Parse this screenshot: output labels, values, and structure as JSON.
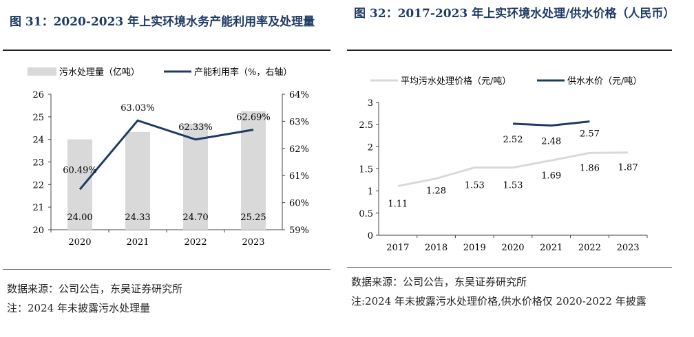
{
  "left": {
    "title": "图 31：2020-2023 年上实环境水务产能利用率及处理量",
    "source": "数据来源：公司公告，东吴证券研究所",
    "note": "注：2024 年未披露污水处理量",
    "colors": {
      "bar": "#d9d9d9",
      "line": "#1f3b63"
    }
  },
  "right": {
    "title": "图 32：2017-2023 年上实环境水处理/供水价格（人民币）",
    "source": "数据来源：公司公告，东吴证券研究所",
    "note": "注:2024 年未披露污水处理价格,供水价格仅 2020-2022 年披露",
    "colors": {
      "sewage": "#d9d9d9",
      "supply": "#1f3b63"
    }
  },
  "chart_data": [
    {
      "type": "bar",
      "categories": [
        "2020",
        "2021",
        "2022",
        "2023"
      ],
      "series": [
        {
          "name": "污水处理量（亿吨）",
          "type": "bar",
          "axis": "left",
          "values": [
            24.0,
            24.33,
            24.7,
            25.25
          ],
          "labels": [
            "24.00",
            "24.33",
            "24.70",
            "25.25"
          ]
        },
        {
          "name": "产能利用率（%，右轴）",
          "type": "line",
          "axis": "right",
          "values": [
            60.49,
            63.03,
            62.33,
            62.69
          ],
          "labels": [
            "60.49%",
            "63.03%",
            "62.33%",
            "62.69%"
          ]
        }
      ],
      "ylim": [
        20,
        26
      ],
      "yticks": [
        "20",
        "21",
        "22",
        "23",
        "24",
        "25",
        "26"
      ],
      "y2lim": [
        59,
        64
      ],
      "y2ticks": [
        "59%",
        "60%",
        "61%",
        "62%",
        "63%",
        "64%"
      ],
      "legend": "top",
      "grid": false
    },
    {
      "type": "line",
      "categories": [
        "2017",
        "2018",
        "2019",
        "2020",
        "2021",
        "2022",
        "2023"
      ],
      "series": [
        {
          "name": "平均污水处理价格（元/吨）",
          "values": [
            1.11,
            1.28,
            1.53,
            1.53,
            1.69,
            1.86,
            1.87
          ],
          "labels": [
            "1.11",
            "1.28",
            "1.53",
            "1.53",
            "1.69",
            "1.86",
            "1.87"
          ]
        },
        {
          "name": "供水水价（元/吨）",
          "values": [
            null,
            null,
            null,
            2.52,
            2.48,
            2.57,
            null
          ],
          "labels": [
            "",
            "",
            "",
            "2.52",
            "2.48",
            "2.57",
            ""
          ]
        }
      ],
      "ylim": [
        0,
        3
      ],
      "yticks": [
        "0",
        "0.5",
        "1",
        "1.5",
        "2",
        "2.5",
        "3"
      ],
      "legend": "top",
      "grid": false
    }
  ]
}
